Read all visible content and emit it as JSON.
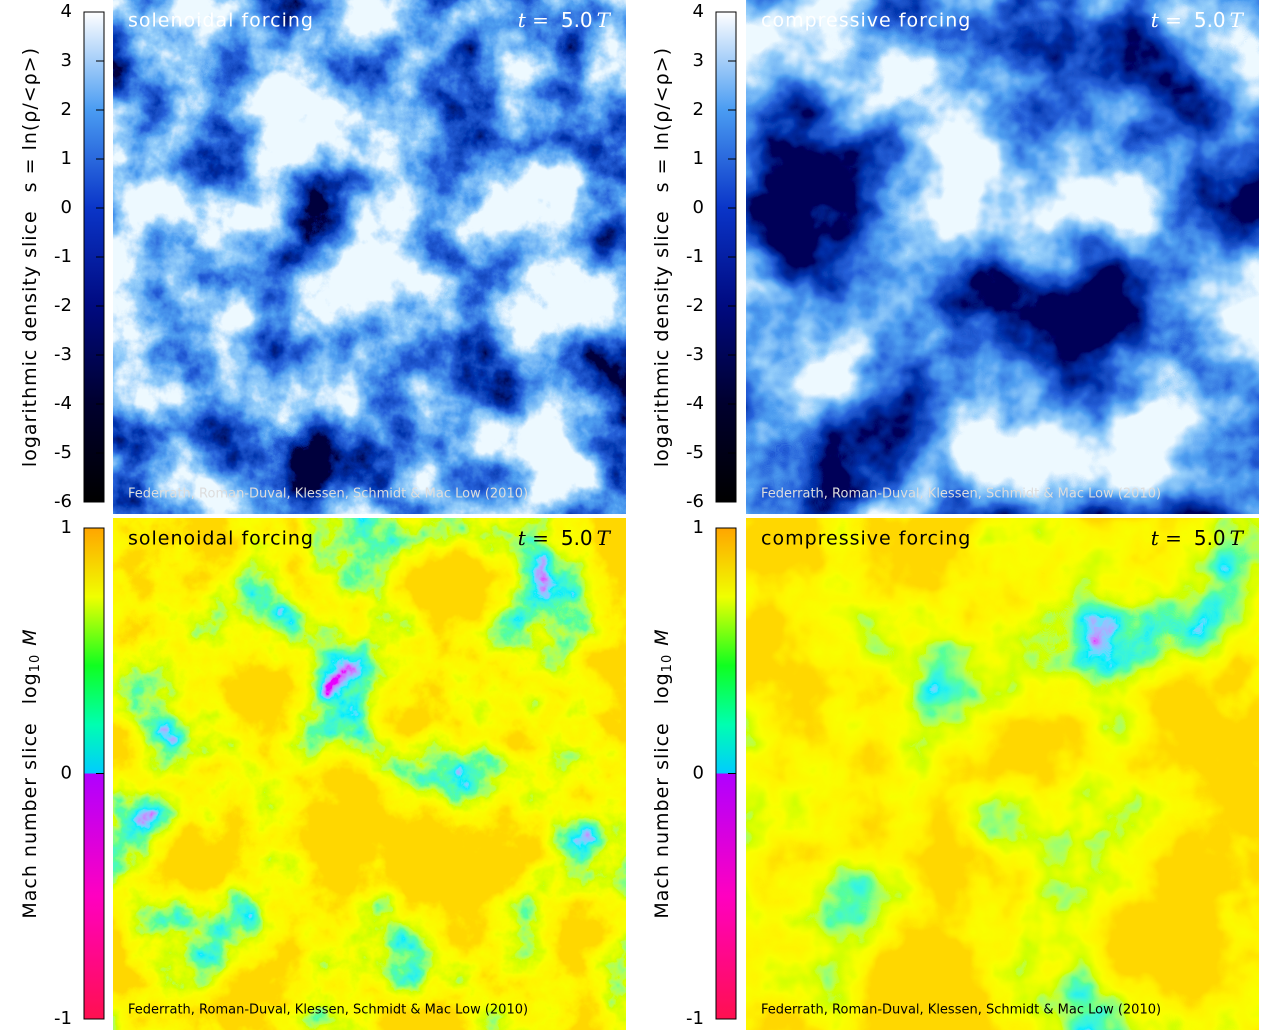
{
  "panels": [
    {
      "title": "solenoidal forcing",
      "time": {
        "symbol": "t =",
        "value": "5.0",
        "unit": "T"
      },
      "credit": "Federrath, Roman-Duval, Klessen, Schmidt & Mac Low (2010)",
      "colorbar": {
        "label": "logarithmic density slice",
        "quantity": [
          "s = ln(ρ/<ρ>)"
        ],
        "lim": [
          -6,
          4
        ],
        "ticks": [
          -6,
          -5,
          -4,
          -3,
          -2,
          -1,
          0,
          1,
          2,
          3,
          4
        ]
      }
    },
    {
      "title": "compressive forcing",
      "time": {
        "symbol": "t =",
        "value": "5.0",
        "unit": "T"
      },
      "credit": "Federrath, Roman-Duval, Klessen, Schmidt & Mac Low (2010)",
      "colorbar": {
        "label": "logarithmic density slice",
        "quantity": [
          "s = ln(ρ/<ρ>)"
        ],
        "lim": [
          -6,
          4
        ],
        "ticks": [
          -6,
          -5,
          -4,
          -3,
          -2,
          -1,
          0,
          1,
          2,
          3,
          4
        ]
      }
    },
    {
      "title": "solenoidal forcing",
      "time": {
        "symbol": "t =",
        "value": "5.0",
        "unit": "T"
      },
      "credit": "Federrath, Roman-Duval, Klessen, Schmidt & Mac Low (2010)",
      "colorbar": {
        "label": "Mach number slice",
        "quantity": [
          "log",
          "10",
          "M"
        ],
        "lim": [
          -1,
          1
        ],
        "ticks": [
          -1,
          0,
          1
        ]
      }
    },
    {
      "title": "compressive forcing",
      "time": {
        "symbol": "t =",
        "value": "5.0",
        "unit": "T"
      },
      "credit": "Federrath, Roman-Duval, Klessen, Schmidt & Mac Low (2010)",
      "colorbar": {
        "label": "Mach number slice",
        "quantity": [
          "log",
          "10",
          "M"
        ],
        "lim": [
          -1,
          1
        ],
        "ticks": [
          -1,
          0,
          1
        ]
      }
    }
  ]
}
